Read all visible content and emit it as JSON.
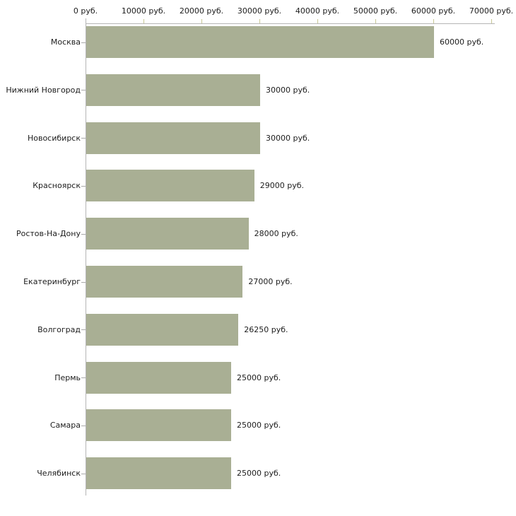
{
  "chart_data": {
    "type": "bar",
    "orientation": "horizontal",
    "title": "",
    "unit": "руб.",
    "categories": [
      "Москва",
      "Нижний Новгород",
      "Новосибирск",
      "Красноярск",
      "Ростов-На-Дону",
      "Екатеринбург",
      "Волгоград",
      "Пермь",
      "Самара",
      "Челябинск"
    ],
    "values": [
      60000,
      30000,
      30000,
      29000,
      28000,
      27000,
      26250,
      25000,
      25000,
      25000
    ],
    "value_labels": [
      "60000 руб.",
      "30000 руб.",
      "30000 руб.",
      "29000 руб.",
      "28000 руб.",
      "27000 руб.",
      "26250 руб.",
      "25000 руб.",
      "25000 руб.",
      "25000 руб."
    ],
    "x_axis": {
      "position": "top",
      "range": [
        0,
        70000
      ],
      "ticks": [
        0,
        10000,
        20000,
        30000,
        40000,
        50000,
        60000,
        70000
      ],
      "tick_labels": [
        "0 руб.",
        "10000 руб.",
        "20000 руб.",
        "30000 руб.",
        "40000 руб.",
        "50000 руб.",
        "60000 руб.",
        "70000 руб."
      ]
    },
    "grid": false,
    "legend": false,
    "colors": {
      "bar_fill": "#a9af94",
      "axis_line": "#b5b5b5",
      "x_tick": "#c8c795",
      "y_tick": "#a8a8a8",
      "text": "#1c1c1c",
      "background": "#ffffff"
    }
  }
}
